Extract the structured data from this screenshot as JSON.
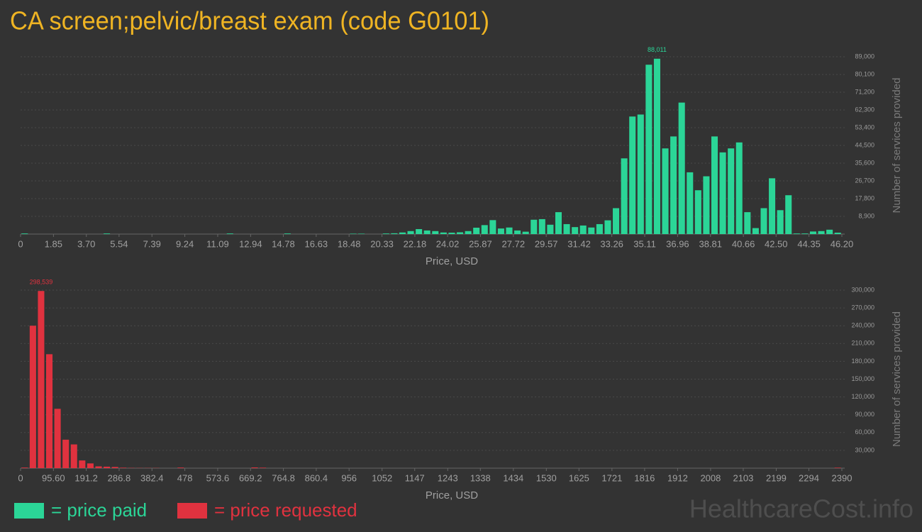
{
  "title": "CA screen;pelvic/breast exam (code G0101)",
  "legend": [
    {
      "label": "= price paid",
      "color": "#2bd597"
    },
    {
      "label": "= price requested",
      "color": "#e0323f"
    }
  ],
  "watermark": "HealthcareCost.info",
  "chart_data": [
    {
      "type": "histogram",
      "color": "#2bd597",
      "grid": true,
      "xlabel": "Price, USD",
      "ylabel": "Number of services provided",
      "xlim": [
        0,
        46.2
      ],
      "ylim": [
        0,
        89000
      ],
      "bins": [
        0,
        0.462,
        0.924,
        1.386,
        1.848,
        2.31,
        2.772,
        3.234,
        3.696,
        4.158,
        4.62,
        5.082,
        5.544,
        6.006,
        6.468,
        6.93,
        7.392,
        7.854,
        8.316,
        8.778,
        9.24,
        9.702,
        10.164,
        10.626,
        11.088,
        11.55,
        12.012,
        12.474,
        12.936,
        13.398,
        13.86,
        14.322,
        14.784,
        15.246,
        15.708,
        16.17,
        16.632,
        17.094,
        17.556,
        18.018,
        18.48,
        18.942,
        19.404,
        19.866,
        20.328,
        20.79,
        21.252,
        21.714,
        22.176,
        22.638,
        23.1,
        23.562,
        24.024,
        24.486,
        24.948,
        25.41,
        25.872,
        26.334,
        26.796,
        27.258,
        27.72,
        28.182,
        28.644,
        29.106,
        29.568,
        30.03,
        30.492,
        30.954,
        31.416,
        31.878,
        32.34,
        32.802,
        33.264,
        33.726,
        34.188,
        34.65,
        35.112,
        35.574,
        36.036,
        36.498,
        36.96,
        37.422,
        37.884,
        38.346,
        38.808,
        39.27,
        39.732,
        40.194,
        40.656,
        41.118,
        41.58,
        42.042,
        42.504,
        42.966,
        43.428,
        43.89,
        44.352,
        44.814,
        45.276,
        45.738,
        46.2
      ],
      "values": [
        300,
        0,
        0,
        0,
        0,
        0,
        0,
        0,
        0,
        0,
        300,
        0,
        0,
        0,
        0,
        0,
        0,
        0,
        0,
        0,
        0,
        0,
        0,
        0,
        0,
        300,
        0,
        0,
        0,
        0,
        0,
        0,
        300,
        0,
        0,
        0,
        0,
        0,
        0,
        0,
        200,
        200,
        0,
        0,
        300,
        400,
        800,
        1500,
        2500,
        1800,
        1500,
        800,
        700,
        900,
        1500,
        3200,
        4500,
        7000,
        2800,
        3300,
        1800,
        1200,
        7200,
        7500,
        4700,
        11000,
        5000,
        3500,
        4300,
        3300,
        5000,
        6900,
        13000,
        38000,
        59000,
        60000,
        85000,
        88011,
        43000,
        49000,
        66000,
        31000,
        22000,
        29000,
        49000,
        41000,
        43000,
        46000,
        11000,
        3000,
        13000,
        28000,
        12000,
        19500,
        300,
        300,
        1300,
        1500,
        2200,
        700
      ],
      "value_labels": [
        null,
        null,
        null,
        null,
        null,
        null,
        null,
        null,
        null,
        null,
        null,
        null,
        null,
        null,
        null,
        null,
        null,
        null,
        null,
        null,
        null,
        null,
        null,
        null,
        null,
        null,
        null,
        null,
        null,
        null,
        null,
        null,
        null,
        null,
        null,
        null,
        null,
        null,
        null,
        null,
        null,
        null,
        null,
        null,
        null,
        null,
        null,
        null,
        null,
        null,
        null,
        null,
        null,
        null,
        null,
        null,
        null,
        null,
        null,
        null,
        null,
        null,
        null,
        null,
        null,
        null,
        null,
        null,
        null,
        null,
        null,
        null,
        null,
        null,
        null,
        null,
        null,
        "88,011",
        null,
        null,
        null,
        null,
        null,
        null,
        null,
        null,
        null,
        null,
        null,
        null,
        null,
        null,
        null,
        null,
        null,
        null,
        null,
        null,
        null,
        null
      ],
      "xticks": [
        0,
        1.85,
        {
          "value": 3.7,
          "label": "3.70"
        },
        5.54,
        7.39,
        9.24,
        11.09,
        12.94,
        14.78,
        16.63,
        18.48,
        20.33,
        22.18,
        24.02,
        25.87,
        27.72,
        29.57,
        31.42,
        33.26,
        35.11,
        36.96,
        38.81,
        40.66,
        {
          "value": 42.5,
          "label": "42.50"
        },
        44.35,
        {
          "value": 46.2,
          "label": "46.20"
        }
      ],
      "yticks": [
        {
          "value": 8900,
          "label": "8,900"
        },
        {
          "value": 17800,
          "label": "17,800"
        },
        {
          "value": 26700,
          "label": "26,700"
        },
        {
          "value": 35600,
          "label": "35,600"
        },
        {
          "value": 44500,
          "label": "44,500"
        },
        {
          "value": 53400,
          "label": "53,400"
        },
        {
          "value": 62300,
          "label": "62,300"
        },
        {
          "value": 71200,
          "label": "71,200"
        },
        {
          "value": 80100,
          "label": "80,100"
        },
        {
          "value": 89000,
          "label": "89,000"
        }
      ]
    },
    {
      "type": "histogram",
      "color": "#e0323f",
      "grid": true,
      "xlabel": "Price, USD",
      "ylabel": "Number of services provided",
      "xlim": [
        0,
        2390
      ],
      "ylim": [
        0,
        300000
      ],
      "bins": [
        0,
        23.9,
        47.8,
        71.7,
        95.6,
        119.5,
        143.4,
        167.3,
        191.2,
        215.1,
        239,
        262.9,
        286.8,
        310.7,
        334.6,
        358.5,
        382.4,
        406.3,
        430.2,
        454.1,
        478,
        501.9,
        525.8,
        549.7,
        573.6,
        597.5,
        621.4,
        645.3,
        669.2,
        693.1,
        717,
        740.9,
        764.8,
        788.7,
        812.6,
        836.5,
        860.4,
        884.3,
        908.2,
        932.1,
        956,
        979.9,
        1003.8,
        1027.7,
        1051.6,
        1075.5,
        1099.4,
        1123.3,
        1147.2,
        1171.1,
        1195,
        1218.9,
        1242.8,
        1266.7,
        1290.6,
        1314.5,
        1338.4,
        1362.3,
        1386.2,
        1410.1,
        1434,
        1457.9,
        1481.8,
        1505.7,
        1529.6,
        1553.5,
        1577.4,
        1601.3,
        1625.2,
        1649.1,
        1673,
        1696.9,
        1720.8,
        1744.7,
        1768.6,
        1792.5,
        1816.4,
        1840.3,
        1864.2,
        1888.1,
        1912,
        1935.9,
        1959.8,
        1983.7,
        2007.6,
        2031.5,
        2055.4,
        2079.3,
        2103.2,
        2127.1,
        2151,
        2174.9,
        2198.8,
        2222.7,
        2246.6,
        2270.5,
        2294.4,
        2318.3,
        2342.2,
        2366.1,
        2390
      ],
      "values": [
        1000,
        240000,
        298539,
        192000,
        100000,
        48000,
        40000,
        13000,
        8000,
        3000,
        2500,
        2000,
        800,
        400,
        300,
        300,
        300,
        0,
        0,
        1000,
        0,
        0,
        0,
        0,
        0,
        0,
        0,
        0,
        1200,
        800,
        0,
        0,
        0,
        0,
        0,
        0,
        0,
        0,
        0,
        0,
        0,
        0,
        0,
        0,
        0,
        0,
        0,
        0,
        0,
        0,
        0,
        0,
        0,
        0,
        0,
        0,
        0,
        0,
        0,
        0,
        0,
        0,
        0,
        0,
        0,
        0,
        0,
        0,
        0,
        0,
        0,
        0,
        0,
        0,
        0,
        0,
        0,
        0,
        0,
        0,
        0,
        0,
        0,
        0,
        0,
        0,
        0,
        0,
        0,
        0,
        0,
        0,
        0,
        0,
        0,
        0,
        0,
        0,
        0,
        800
      ],
      "value_labels": [
        null,
        null,
        "298,539",
        null,
        null,
        null,
        null,
        null,
        null,
        null,
        null,
        null,
        null,
        null,
        null,
        null,
        null,
        null,
        null,
        null,
        null,
        null,
        null,
        null,
        null,
        null,
        null,
        null,
        null,
        null,
        null,
        null,
        null,
        null,
        null,
        null,
        null,
        null,
        null,
        null,
        null,
        null,
        null,
        null,
        null,
        null,
        null,
        null,
        null,
        null,
        null,
        null,
        null,
        null,
        null,
        null,
        null,
        null,
        null,
        null,
        null,
        null,
        null,
        null,
        null,
        null,
        null,
        null,
        null,
        null,
        null,
        null,
        null,
        null,
        null,
        null,
        null,
        null,
        null,
        null,
        null,
        null,
        null,
        null,
        null,
        null,
        null,
        null,
        null,
        null,
        null,
        null,
        null,
        null,
        null,
        null,
        null,
        null,
        null,
        null
      ],
      "xticks": [
        0,
        {
          "value": 95.6,
          "label": "95.60"
        },
        191.2,
        286.8,
        382.4,
        478,
        573.6,
        669.2,
        764.8,
        860.4,
        956,
        1052,
        1147,
        1243,
        1338,
        1434,
        1530,
        1625,
        1721,
        1816,
        1912,
        2008,
        2103,
        2199,
        2294,
        2390
      ],
      "yticks": [
        {
          "value": 30000,
          "label": "30,000"
        },
        {
          "value": 60000,
          "label": "60,000"
        },
        {
          "value": 90000,
          "label": "90,000"
        },
        {
          "value": 120000,
          "label": "120,000"
        },
        {
          "value": 150000,
          "label": "150,000"
        },
        {
          "value": 180000,
          "label": "180,000"
        },
        {
          "value": 210000,
          "label": "210,000"
        },
        {
          "value": 240000,
          "label": "240,000"
        },
        {
          "value": 270000,
          "label": "270,000"
        },
        {
          "value": 300000,
          "label": "300,000"
        }
      ]
    }
  ]
}
